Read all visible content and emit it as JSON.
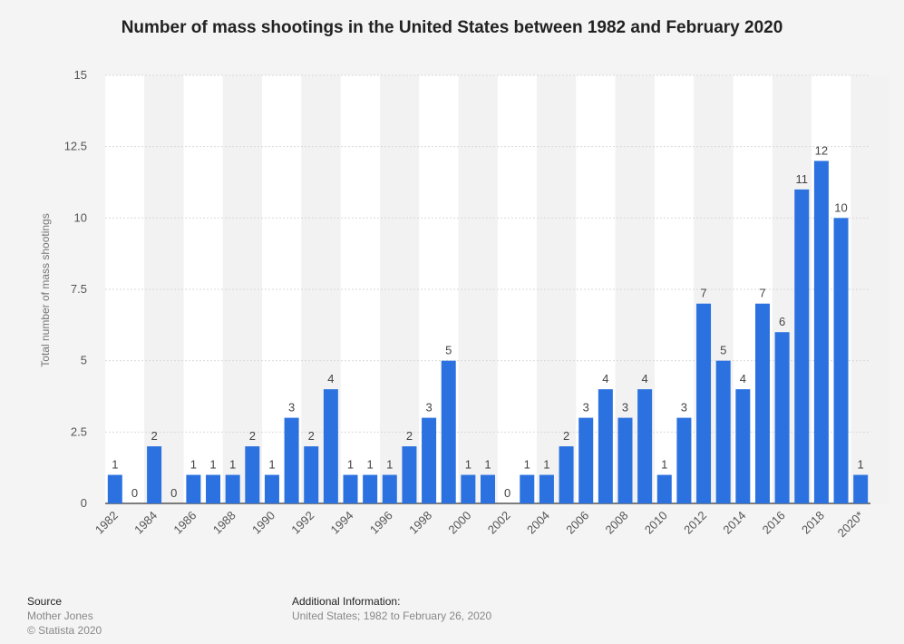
{
  "chart_data": {
    "type": "bar",
    "title": "Number of mass shootings in the United States between 1982 and February 2020",
    "ylabel": "Total number of mass shootings",
    "xlabel": "",
    "ylim": [
      0,
      15
    ],
    "yticks": [
      "0",
      "2.5",
      "5",
      "7.5",
      "10",
      "12.5",
      "15"
    ],
    "categories": [
      "1982",
      "1983",
      "1984",
      "1985",
      "1986",
      "1987",
      "1988",
      "1989",
      "1990",
      "1991",
      "1992",
      "1993",
      "1994",
      "1995",
      "1996",
      "1997",
      "1998",
      "1999",
      "2000",
      "2001",
      "2002",
      "2003",
      "2004",
      "2005",
      "2006",
      "2007",
      "2008",
      "2009",
      "2010",
      "2011",
      "2012",
      "2013",
      "2014",
      "2015",
      "2016",
      "2017",
      "2018",
      "2019",
      "2020*"
    ],
    "values": [
      1,
      0,
      2,
      0,
      1,
      1,
      1,
      2,
      1,
      3,
      2,
      4,
      1,
      1,
      1,
      2,
      3,
      5,
      1,
      1,
      0,
      1,
      1,
      2,
      3,
      4,
      3,
      4,
      1,
      3,
      7,
      5,
      4,
      7,
      6,
      11,
      12,
      10,
      1
    ],
    "xtick_labels": [
      "1982",
      "1984",
      "1986",
      "1988",
      "1990",
      "1992",
      "1994",
      "1996",
      "1998",
      "2000",
      "2002",
      "2004",
      "2006",
      "2008",
      "2010",
      "2012",
      "2014",
      "2016",
      "2018",
      "2020*"
    ],
    "grid": true,
    "bar_color": "#2b72e0"
  },
  "footer": {
    "source_heading": "Source",
    "source_line1": "Mother Jones",
    "source_line2": "© Statista 2020",
    "additional_heading": "Additional Information:",
    "additional_text": "United States; 1982 to February 26, 2020"
  }
}
